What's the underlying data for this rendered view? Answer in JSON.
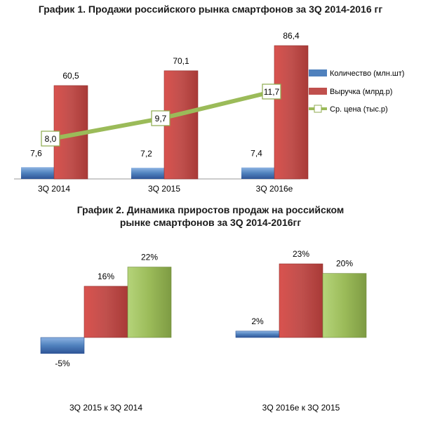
{
  "chart_data": [
    {
      "type": "bar",
      "title": "График 1. Продажи российского рынка смартфонов за 3Q 2014-2016 гг",
      "categories": [
        "3Q 2014",
        "3Q 2015",
        "3Q 2016е"
      ],
      "series": [
        {
          "name": "Количество (млн.шт)",
          "type": "bar",
          "values": [
            7.6,
            7.2,
            7.4
          ],
          "labels": [
            "7,6",
            "7,2",
            "7,4"
          ],
          "color": "#4472C4"
        },
        {
          "name": "Выручка (млрд.р)",
          "type": "bar",
          "values": [
            60.5,
            70.1,
            86.4
          ],
          "labels": [
            "60,5",
            "70,1",
            "86,4"
          ],
          "color": "#C0504D"
        },
        {
          "name": "Ср. цена (тыс.р)",
          "type": "line",
          "values": [
            8.0,
            9.7,
            11.7
          ],
          "labels": [
            "8,0",
            "9,7",
            "11,7"
          ],
          "color": "#9BBB59"
        }
      ],
      "legend_position": "right",
      "grid": false
    },
    {
      "type": "bar",
      "title": "График 2. Динамика приростов продаж на российском рынке смартфонов за 3Q 2014-2016гг",
      "categories": [
        "3Q 2015 к 3Q 2014",
        "3Q 2016е к 3Q 2015"
      ],
      "series": [
        {
          "values": [
            -5,
            2
          ],
          "labels": [
            "-5%",
            "2%"
          ],
          "color": "#4472C4"
        },
        {
          "values": [
            16,
            23
          ],
          "labels": [
            "16%",
            "23%"
          ],
          "color": "#C0504D"
        },
        {
          "values": [
            22,
            20
          ],
          "labels": [
            "22%",
            "20%"
          ],
          "color": "#9BBB59"
        }
      ],
      "grid": false
    }
  ]
}
